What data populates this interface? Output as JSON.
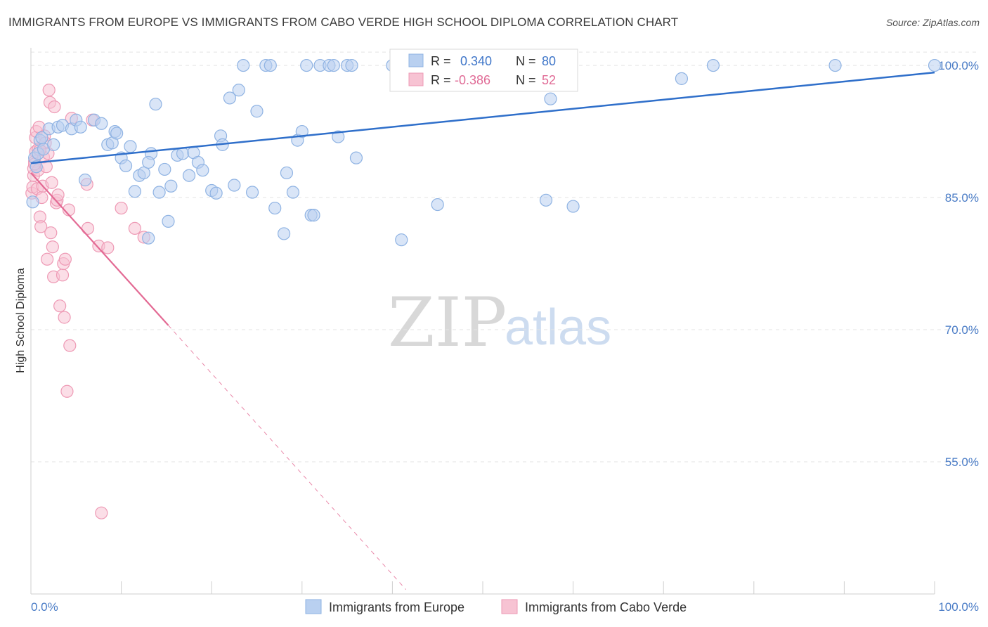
{
  "header": {
    "title": "IMMIGRANTS FROM EUROPE VS IMMIGRANTS FROM CABO VERDE HIGH SCHOOL DIPLOMA CORRELATION CHART",
    "source": "Source: ZipAtlas.com"
  },
  "watermark": {
    "zip": "ZIP",
    "atlas": "atlas"
  },
  "colors": {
    "europe_fill": "#b9d0f0",
    "europe_stroke": "#8fb3e3",
    "europe_line": "#2f6fca",
    "cabo_fill": "#f7c3d3",
    "cabo_stroke": "#ee9ab5",
    "cabo_line": "#e36a94",
    "tick_text": "#4a7cc6",
    "grid": "#e3e3e3"
  },
  "stats": {
    "europe": {
      "r_label": "R =",
      "r_value": "0.340",
      "n_label": "N =",
      "n_value": "80"
    },
    "cabo": {
      "r_label": "R =",
      "r_value": "-0.386",
      "n_label": "N =",
      "n_value": "52"
    }
  },
  "chart_data": {
    "type": "scatter",
    "title": "IMMIGRANTS FROM EUROPE VS IMMIGRANTS FROM CABO VERDE HIGH SCHOOL DIPLOMA CORRELATION CHART",
    "xlabel": "",
    "ylabel": "High School Diploma",
    "xlim": [
      0,
      100
    ],
    "ylim": [
      40,
      102
    ],
    "x_tick_labels": [
      "0.0%",
      "100.0%"
    ],
    "y_ticks": [
      55,
      70,
      85,
      100
    ],
    "y_tick_labels": [
      "55.0%",
      "70.0%",
      "85.0%",
      "100.0%"
    ],
    "grid": true,
    "legend_position": "bottom-center",
    "series": [
      {
        "name": "Immigrants from Europe",
        "r": 0.34,
        "n": 80,
        "trend": {
          "x": [
            0,
            100
          ],
          "y": [
            88.9,
            99.2
          ],
          "dashed_extension": false
        },
        "points": [
          [
            0.2,
            84.5
          ],
          [
            0.4,
            89.5
          ],
          [
            0.6,
            88.5
          ],
          [
            0.8,
            90
          ],
          [
            1.0,
            91.5
          ],
          [
            1.2,
            91.8
          ],
          [
            1.4,
            90.5
          ],
          [
            2.0,
            92.8
          ],
          [
            2.5,
            91
          ],
          [
            3.0,
            93
          ],
          [
            3.5,
            93.2
          ],
          [
            4.5,
            92.8
          ],
          [
            5.0,
            93.8
          ],
          [
            5.5,
            93
          ],
          [
            6.0,
            87
          ],
          [
            7.0,
            93.8
          ],
          [
            7.8,
            93.4
          ],
          [
            8.5,
            91
          ],
          [
            9.0,
            91.2
          ],
          [
            9.3,
            92.5
          ],
          [
            9.5,
            92.3
          ],
          [
            10.0,
            89.5
          ],
          [
            10.5,
            88.6
          ],
          [
            11.0,
            90.8
          ],
          [
            11.5,
            85.7
          ],
          [
            12.0,
            87.5
          ],
          [
            12.5,
            87.8
          ],
          [
            13.0,
            80.4
          ],
          [
            13.3,
            90
          ],
          [
            13.8,
            95.6
          ],
          [
            14.2,
            85.6
          ],
          [
            14.8,
            88.2
          ],
          [
            15.2,
            82.3
          ],
          [
            15.5,
            86.3
          ],
          [
            16.2,
            89.8
          ],
          [
            16.8,
            90
          ],
          [
            17.5,
            87.5
          ],
          [
            18.0,
            90.1
          ],
          [
            18.5,
            89
          ],
          [
            19.0,
            88.1
          ],
          [
            20.0,
            85.8
          ],
          [
            20.5,
            85.5
          ],
          [
            21.0,
            92
          ],
          [
            21.2,
            91
          ],
          [
            22.0,
            96.3
          ],
          [
            22.5,
            86.4
          ],
          [
            23.0,
            97.2
          ],
          [
            23.5,
            100
          ],
          [
            24.5,
            85.6
          ],
          [
            25.0,
            94.8
          ],
          [
            26.0,
            100
          ],
          [
            26.5,
            100
          ],
          [
            27.0,
            83.8
          ],
          [
            28.0,
            80.9
          ],
          [
            28.3,
            87.8
          ],
          [
            29.0,
            85.6
          ],
          [
            29.5,
            91.5
          ],
          [
            30.0,
            92.5
          ],
          [
            30.5,
            100
          ],
          [
            31.0,
            83
          ],
          [
            31.3,
            83
          ],
          [
            32.0,
            100
          ],
          [
            33.0,
            100
          ],
          [
            33.5,
            100
          ],
          [
            34.0,
            91.9
          ],
          [
            35.0,
            100
          ],
          [
            35.5,
            100
          ],
          [
            36.0,
            89.5
          ],
          [
            40.0,
            100
          ],
          [
            41.0,
            80.2
          ],
          [
            45.0,
            84.2
          ],
          [
            47.0,
            100
          ],
          [
            57.0,
            84.7
          ],
          [
            57.5,
            96.2
          ],
          [
            60.0,
            84
          ],
          [
            72.0,
            98.5
          ],
          [
            75.5,
            100
          ],
          [
            89.0,
            100
          ],
          [
            100.0,
            100
          ],
          [
            13.0,
            89
          ]
        ]
      },
      {
        "name": "Immigrants from Cabo Verde",
        "r": -0.386,
        "n": 52,
        "trend": {
          "x": [
            0,
            15.2,
            41.5
          ],
          "y": [
            87.8,
            70.5,
            40.5
          ],
          "dashed_extension": true
        },
        "points": [
          [
            0.1,
            85.5
          ],
          [
            0.2,
            86.2
          ],
          [
            0.3,
            87.5
          ],
          [
            0.3,
            88.3
          ],
          [
            0.4,
            89.1
          ],
          [
            0.5,
            90.2
          ],
          [
            0.5,
            91.8
          ],
          [
            0.6,
            92.5
          ],
          [
            0.7,
            86
          ],
          [
            0.8,
            88.1
          ],
          [
            0.8,
            90.5
          ],
          [
            0.9,
            93
          ],
          [
            1.0,
            82.8
          ],
          [
            1.1,
            81.7
          ],
          [
            1.2,
            85
          ],
          [
            1.3,
            86.3
          ],
          [
            1.4,
            89.6
          ],
          [
            1.5,
            92
          ],
          [
            1.6,
            91.2
          ],
          [
            1.7,
            88.5
          ],
          [
            1.8,
            78
          ],
          [
            1.9,
            90
          ],
          [
            2.0,
            97.2
          ],
          [
            2.1,
            95.8
          ],
          [
            2.2,
            81
          ],
          [
            2.3,
            86.7
          ],
          [
            2.4,
            79.4
          ],
          [
            2.5,
            76
          ],
          [
            2.6,
            95.3
          ],
          [
            2.8,
            84.4
          ],
          [
            2.9,
            84.7
          ],
          [
            3.0,
            85.3
          ],
          [
            3.2,
            72.7
          ],
          [
            3.5,
            76.2
          ],
          [
            3.6,
            77.5
          ],
          [
            3.7,
            71.4
          ],
          [
            3.8,
            78
          ],
          [
            4.0,
            63
          ],
          [
            4.2,
            83.6
          ],
          [
            4.3,
            68.2
          ],
          [
            4.5,
            94
          ],
          [
            6.2,
            86.5
          ],
          [
            6.3,
            81.5
          ],
          [
            6.8,
            93.8
          ],
          [
            7.5,
            79.5
          ],
          [
            7.8,
            49.2
          ],
          [
            8.5,
            79.3
          ],
          [
            10.0,
            83.8
          ],
          [
            11.5,
            81.5
          ],
          [
            12.5,
            80.5
          ],
          [
            0.4,
            88.8
          ],
          [
            1.0,
            90.4
          ]
        ]
      }
    ]
  }
}
